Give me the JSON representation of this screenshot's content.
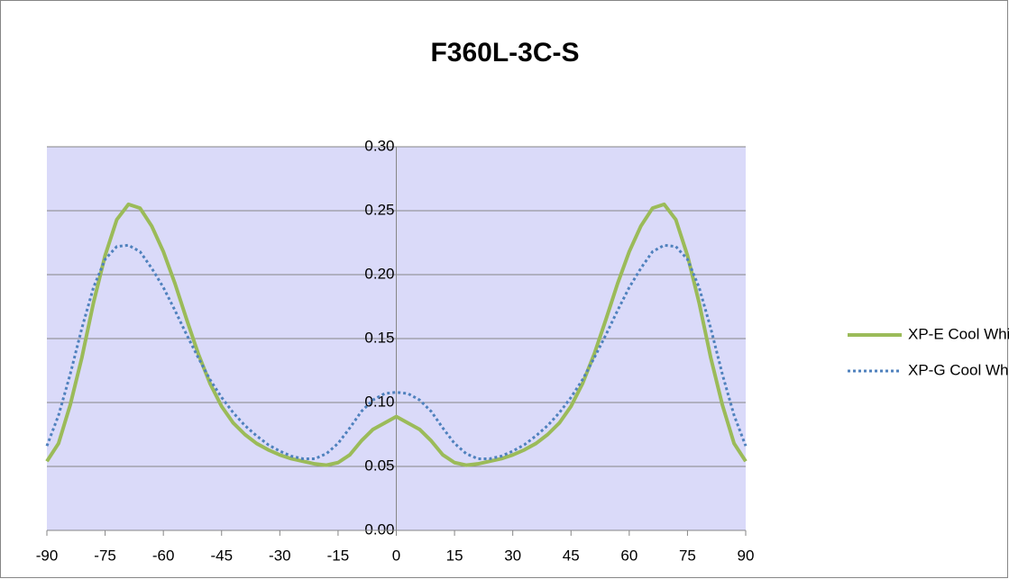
{
  "chart_data": {
    "type": "line",
    "title": "F360L-3C-S",
    "x": [
      -90,
      -87,
      -84,
      -81,
      -78,
      -75,
      -72,
      -69,
      -66,
      -63,
      -60,
      -57,
      -54,
      -51,
      -48,
      -45,
      -42,
      -39,
      -36,
      -33,
      -30,
      -27,
      -24,
      -21,
      -18,
      -15,
      -12,
      -9,
      -6,
      -3,
      0,
      3,
      6,
      9,
      12,
      15,
      18,
      21,
      24,
      27,
      30,
      33,
      36,
      39,
      42,
      45,
      48,
      51,
      54,
      57,
      60,
      63,
      66,
      69,
      72,
      75,
      78,
      81,
      84,
      87,
      90
    ],
    "series": [
      {
        "name": "XP-E Cool White",
        "color": "#9bbb59",
        "dash": "solid",
        "values": [
          0.054,
          0.068,
          0.098,
          0.135,
          0.178,
          0.215,
          0.243,
          0.255,
          0.252,
          0.238,
          0.218,
          0.193,
          0.165,
          0.138,
          0.115,
          0.097,
          0.084,
          0.075,
          0.068,
          0.063,
          0.059,
          0.056,
          0.054,
          0.052,
          0.051,
          0.053,
          0.059,
          0.07,
          0.079,
          0.084,
          0.089,
          0.084,
          0.079,
          0.07,
          0.059,
          0.053,
          0.051,
          0.052,
          0.054,
          0.056,
          0.059,
          0.063,
          0.068,
          0.075,
          0.084,
          0.097,
          0.115,
          0.138,
          0.165,
          0.193,
          0.218,
          0.238,
          0.252,
          0.255,
          0.243,
          0.215,
          0.178,
          0.135,
          0.098,
          0.068,
          0.054
        ]
      },
      {
        "name": "XP-G Cool White",
        "color": "#4f81bd",
        "dash": "dotted",
        "values": [
          0.066,
          0.09,
          0.122,
          0.158,
          0.19,
          0.212,
          0.222,
          0.223,
          0.218,
          0.205,
          0.19,
          0.172,
          0.153,
          0.135,
          0.118,
          0.104,
          0.092,
          0.082,
          0.074,
          0.067,
          0.062,
          0.058,
          0.056,
          0.056,
          0.06,
          0.068,
          0.08,
          0.093,
          0.102,
          0.107,
          0.108,
          0.107,
          0.102,
          0.093,
          0.08,
          0.068,
          0.06,
          0.056,
          0.056,
          0.058,
          0.062,
          0.067,
          0.074,
          0.082,
          0.092,
          0.104,
          0.118,
          0.135,
          0.153,
          0.172,
          0.19,
          0.205,
          0.218,
          0.223,
          0.222,
          0.212,
          0.19,
          0.158,
          0.122,
          0.09,
          0.066
        ]
      }
    ],
    "xlim": [
      -90,
      90
    ],
    "xticks": [
      -90,
      -75,
      -60,
      -45,
      -30,
      -15,
      0,
      15,
      30,
      45,
      60,
      75,
      90
    ],
    "ylim": [
      0,
      0.3
    ],
    "yticks": [
      {
        "value": 0,
        "label": "0.00"
      },
      {
        "value": 0.05,
        "label": "0.05"
      },
      {
        "value": 0.1,
        "label": "0.10"
      },
      {
        "value": 0.15,
        "label": "0.15"
      },
      {
        "value": 0.2,
        "label": "0.20"
      },
      {
        "value": 0.25,
        "label": "0.25"
      },
      {
        "value": 0.3,
        "label": "0.30"
      }
    ],
    "grid": true,
    "legend": "right",
    "plot_background": "#dadaf9"
  }
}
